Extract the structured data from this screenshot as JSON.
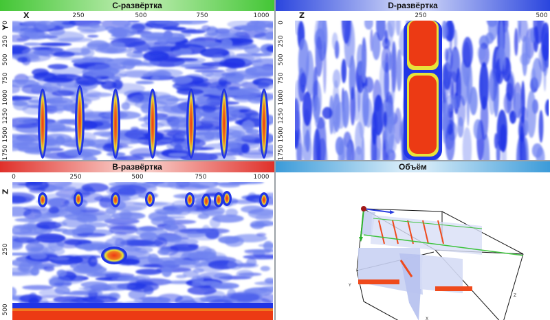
{
  "panels": {
    "c_scan": {
      "title": "C-развёртка",
      "axis_h": {
        "name": "X",
        "ticks": [
          "250",
          "500",
          "750",
          "1000"
        ]
      },
      "axis_v": {
        "name": "Y",
        "ticks": [
          "0",
          "250",
          "500",
          "750",
          "1000",
          "1250",
          "1500",
          "1750"
        ]
      }
    },
    "d_scan": {
      "title": "D-развёртка",
      "axis_h": {
        "name": "Z",
        "ticks": [
          "250",
          "500"
        ]
      },
      "axis_v": {
        "ticks": [
          "0",
          "250",
          "500",
          "750",
          "1000",
          "1250",
          "1500",
          "1750"
        ]
      }
    },
    "b_scan": {
      "title": "B-развёртка",
      "axis_h": {
        "ticks": [
          "0",
          "250",
          "500",
          "750",
          "1000"
        ]
      },
      "axis_v": {
        "name": "Z",
        "ticks": [
          "250",
          "500"
        ]
      }
    },
    "volume": {
      "title": "Объём",
      "labels": [
        "Y",
        "X",
        "Z"
      ]
    }
  },
  "colors": {
    "c_header": "#48c83a",
    "d_header": "#2f4be0",
    "b_header": "#e0332b",
    "vol_header": "#3a9ad9",
    "colormap": [
      "#ffffff",
      "#6f82f0",
      "#2034e6",
      "#e8e33a",
      "#f07a1f",
      "#ec3a14"
    ]
  }
}
